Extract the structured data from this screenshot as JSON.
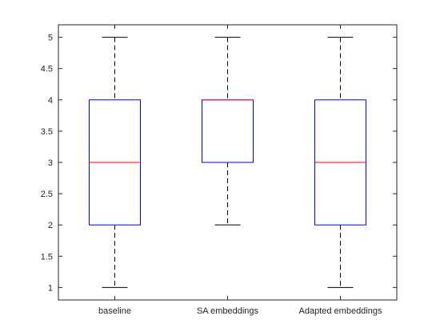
{
  "chart_data": {
    "type": "box",
    "categories": [
      "baseline",
      "SA embeddings",
      "Adapted embeddings"
    ],
    "boxes": [
      {
        "name": "baseline",
        "min": 1,
        "q1": 2,
        "median": 3,
        "q3": 4,
        "max": 5
      },
      {
        "name": "SA embeddings",
        "min": 2,
        "q1": 3,
        "median": 4,
        "q3": 4,
        "max": 5
      },
      {
        "name": "Adapted embeddings",
        "min": 1,
        "q1": 2,
        "median": 3,
        "q3": 4,
        "max": 5
      }
    ],
    "yticks": [
      1,
      1.5,
      2,
      2.5,
      3,
      3.5,
      4,
      4.5,
      5
    ],
    "yticklabels": [
      "1",
      "1.5",
      "2",
      "2.5",
      "3",
      "3.5",
      "4",
      "4.5",
      "5"
    ],
    "ylim": [
      0.8,
      5.2
    ],
    "title": "",
    "xlabel": "",
    "ylabel": "",
    "grid": false,
    "colors": {
      "box": "#0000ff",
      "median": "#ff0000",
      "whisker": "#000000",
      "axes": "#262626"
    }
  }
}
